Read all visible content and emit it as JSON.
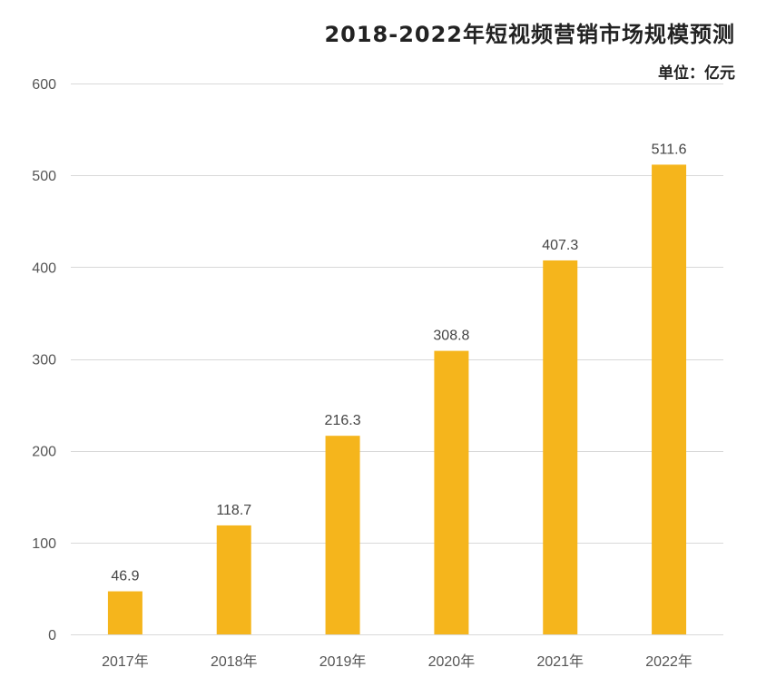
{
  "chart_data": {
    "type": "bar",
    "title": "2018-2022年短视频营销市场规模预测",
    "unit_label": "单位：亿元",
    "categories": [
      "2017年",
      "2018年",
      "2019年",
      "2020年",
      "2021年",
      "2022年"
    ],
    "values": [
      46.9,
      118.7,
      216.3,
      308.8,
      407.3,
      511.6
    ],
    "value_labels": [
      "46.9",
      "118.7",
      "216.3",
      "308.8",
      "407.3",
      "511.6"
    ],
    "y_ticks": [
      0,
      100,
      200,
      300,
      400,
      500,
      600
    ],
    "ylim": [
      0,
      600
    ],
    "grid": true,
    "legend": "none",
    "bar_color": "#F5B51C",
    "grid_color": "#D9D9D9"
  }
}
